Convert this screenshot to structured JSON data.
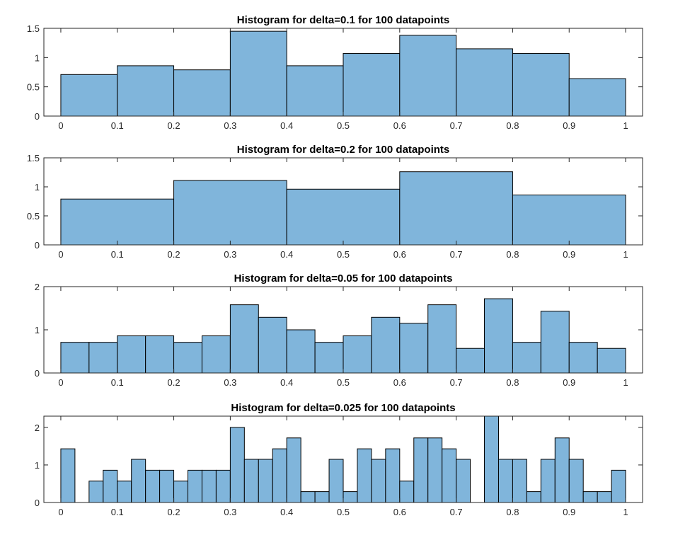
{
  "chart_data": [
    {
      "type": "bar",
      "title": "Histogram for delta=0.1 for 100 datapoints",
      "bin_width": 0.1,
      "xlim": [
        -0.03,
        1.03
      ],
      "ylim": [
        0,
        1.5
      ],
      "x_ticks": [
        "0",
        "0.1",
        "0.2",
        "0.3",
        "0.4",
        "0.5",
        "0.6",
        "0.7",
        "0.8",
        "0.9",
        "1"
      ],
      "y_ticks": [
        "0",
        "0.5",
        "1",
        "1.5"
      ],
      "bin_edges": [
        0,
        0.1,
        0.2,
        0.3,
        0.4,
        0.5,
        0.6,
        0.7,
        0.8,
        0.9,
        1.0
      ],
      "values": [
        0.71,
        0.86,
        0.79,
        1.45,
        0.86,
        1.07,
        1.38,
        1.15,
        1.07,
        0.64
      ],
      "bar_color": "#80b5db",
      "grid": false
    },
    {
      "type": "bar",
      "title": "Histogram for delta=0.2 for 100 datapoints",
      "bin_width": 0.2,
      "xlim": [
        -0.03,
        1.03
      ],
      "ylim": [
        0,
        1.5
      ],
      "x_ticks": [
        "0",
        "0.1",
        "0.2",
        "0.3",
        "0.4",
        "0.5",
        "0.6",
        "0.7",
        "0.8",
        "0.9",
        "1"
      ],
      "y_ticks": [
        "0",
        "0.5",
        "1",
        "1.5"
      ],
      "bin_edges": [
        0,
        0.2,
        0.4,
        0.6,
        0.8,
        1.0
      ],
      "values": [
        0.79,
        1.11,
        0.96,
        1.26,
        0.86
      ],
      "bar_color": "#80b5db",
      "grid": false
    },
    {
      "type": "bar",
      "title": "Histogram for delta=0.05 for 100 datapoints",
      "bin_width": 0.05,
      "xlim": [
        -0.03,
        1.03
      ],
      "ylim": [
        0,
        2
      ],
      "x_ticks": [
        "0",
        "0.1",
        "0.2",
        "0.3",
        "0.4",
        "0.5",
        "0.6",
        "0.7",
        "0.8",
        "0.9",
        "1"
      ],
      "y_ticks": [
        "0",
        "1",
        "2"
      ],
      "bin_edges": [
        0,
        0.05,
        0.1,
        0.15,
        0.2,
        0.25,
        0.3,
        0.35,
        0.4,
        0.45,
        0.5,
        0.55,
        0.6,
        0.65,
        0.7,
        0.75,
        0.8,
        0.85,
        0.9,
        0.95,
        1.0
      ],
      "values": [
        0.71,
        0.71,
        0.86,
        0.86,
        0.71,
        0.86,
        1.58,
        1.29,
        1.0,
        0.71,
        0.86,
        1.29,
        1.15,
        1.58,
        0.57,
        1.72,
        0.71,
        1.43,
        0.71,
        0.57
      ],
      "bar_color": "#80b5db",
      "grid": false
    },
    {
      "type": "bar",
      "title": "Histogram for delta=0.025 for 100 datapoints",
      "bin_width": 0.025,
      "xlim": [
        -0.03,
        1.03
      ],
      "ylim": [
        0,
        2.3
      ],
      "x_ticks": [
        "0",
        "0.1",
        "0.2",
        "0.3",
        "0.4",
        "0.5",
        "0.6",
        "0.7",
        "0.8",
        "0.9",
        "1"
      ],
      "y_ticks": [
        "0",
        "1",
        "2"
      ],
      "bin_edges": [
        0,
        0.025,
        0.05,
        0.075,
        0.1,
        0.125,
        0.15,
        0.175,
        0.2,
        0.225,
        0.25,
        0.275,
        0.3,
        0.325,
        0.35,
        0.375,
        0.4,
        0.425,
        0.45,
        0.475,
        0.5,
        0.525,
        0.55,
        0.575,
        0.6,
        0.625,
        0.65,
        0.675,
        0.7,
        0.725,
        0.75,
        0.775,
        0.8,
        0.825,
        0.85,
        0.875,
        0.9,
        0.925,
        0.95,
        0.975,
        1.0
      ],
      "values": [
        1.43,
        0,
        0.57,
        0.86,
        0.57,
        1.15,
        0.86,
        0.86,
        0.57,
        0.86,
        0.86,
        0.86,
        2.0,
        1.15,
        1.15,
        1.43,
        1.72,
        0.29,
        0.29,
        1.15,
        0.29,
        1.43,
        1.15,
        1.43,
        0.57,
        1.72,
        1.72,
        1.43,
        1.15,
        0,
        2.3,
        1.15,
        1.15,
        0.29,
        1.15,
        1.72,
        1.15,
        0.29,
        0.29,
        0.86
      ],
      "bar_color": "#80b5db",
      "grid": false
    }
  ]
}
